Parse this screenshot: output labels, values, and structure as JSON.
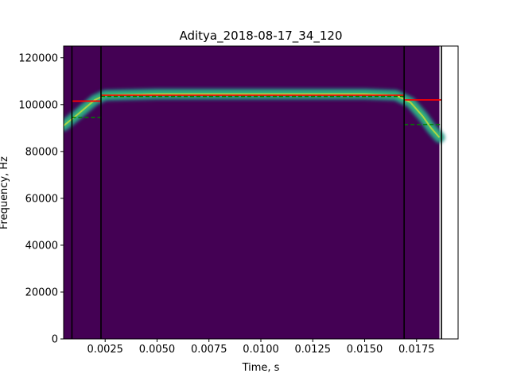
{
  "chart_data": {
    "type": "heatmap",
    "title": "Aditya_2018-08-17_34_120",
    "xlabel": "Time, s",
    "ylabel": "Frequency, Hz",
    "xlim": [
      0.0005,
      0.0195
    ],
    "ylim": [
      0,
      125000
    ],
    "xticks": [
      {
        "value": 0.0025,
        "label": "0.0025"
      },
      {
        "value": 0.005,
        "label": "0.0050"
      },
      {
        "value": 0.0075,
        "label": "0.0075"
      },
      {
        "value": 0.01,
        "label": "0.0100"
      },
      {
        "value": 0.0125,
        "label": "0.0125"
      },
      {
        "value": 0.015,
        "label": "0.0150"
      },
      {
        "value": 0.0175,
        "label": "0.0175"
      }
    ],
    "yticks": [
      {
        "value": 0,
        "label": "0"
      },
      {
        "value": 20000,
        "label": "20000"
      },
      {
        "value": 40000,
        "label": "40000"
      },
      {
        "value": 60000,
        "label": "60000"
      },
      {
        "value": 80000,
        "label": "80000"
      },
      {
        "value": 100000,
        "label": "100000"
      },
      {
        "value": 120000,
        "label": "120000"
      }
    ],
    "spectrogram_extent": {
      "t_start": 0.0005,
      "t_end": 0.0186
    },
    "colormap": "viridis",
    "background_color": "#440154",
    "call_band": {
      "color": "#35b779",
      "core_color": "#fde725",
      "points": [
        [
          0.0005,
          91000
        ],
        [
          0.0012,
          96000
        ],
        [
          0.002,
          102000
        ],
        [
          0.0025,
          104000
        ],
        [
          0.005,
          104500
        ],
        [
          0.0075,
          104500
        ],
        [
          0.01,
          104500
        ],
        [
          0.0125,
          104500
        ],
        [
          0.015,
          104500
        ],
        [
          0.0165,
          104000
        ],
        [
          0.0172,
          101000
        ],
        [
          0.0178,
          95000
        ],
        [
          0.0182,
          90000
        ],
        [
          0.0186,
          86000
        ]
      ]
    },
    "vertical_lines": [
      0.0009,
      0.0023,
      0.0169,
      0.0187
    ],
    "red_segments": [
      {
        "x": [
          0.0009,
          0.0023
        ],
        "y": 101500
      },
      {
        "x": [
          0.0023,
          0.0169
        ],
        "y": 104000
      },
      {
        "x": [
          0.0169,
          0.0187
        ],
        "y": 102000
      }
    ],
    "green_dashed_segments": [
      {
        "x": [
          0.0009,
          0.0023
        ],
        "y": 94500
      },
      {
        "x": [
          0.0023,
          0.0169
        ],
        "y": 103500
      },
      {
        "x": [
          0.0169,
          0.0187
        ],
        "y": 91500
      }
    ],
    "grid": false
  }
}
